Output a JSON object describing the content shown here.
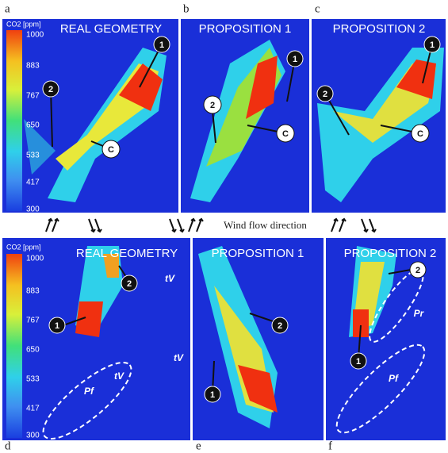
{
  "panels": [
    {
      "letter": "a",
      "title": "REAL GEOMETRY",
      "markers": [
        "1",
        "2",
        "C"
      ]
    },
    {
      "letter": "b",
      "title": "PROPOSITION 1",
      "markers": [
        "1",
        "2",
        "C"
      ]
    },
    {
      "letter": "c",
      "title": "PROPOSITION 2",
      "markers": [
        "1",
        "2",
        "C"
      ]
    },
    {
      "letter": "d",
      "title": "REAL GEOMETRY",
      "markers": [
        "1",
        "2"
      ],
      "annotations": [
        "tV",
        "tV",
        "tV",
        "Pf"
      ]
    },
    {
      "letter": "e",
      "title": "PROPOSITION 1",
      "markers": [
        "1",
        "2"
      ]
    },
    {
      "letter": "f",
      "title": "PROPOSITION 2",
      "markers": [
        "1",
        "2"
      ],
      "annotations": [
        "Pr",
        "Pf"
      ]
    }
  ],
  "colorbar": {
    "label": "CO2 [ppm]",
    "ticks": [
      "1000",
      "883",
      "767",
      "650",
      "533",
      "417",
      "300"
    ]
  },
  "wind_label": "Wind flow direction"
}
